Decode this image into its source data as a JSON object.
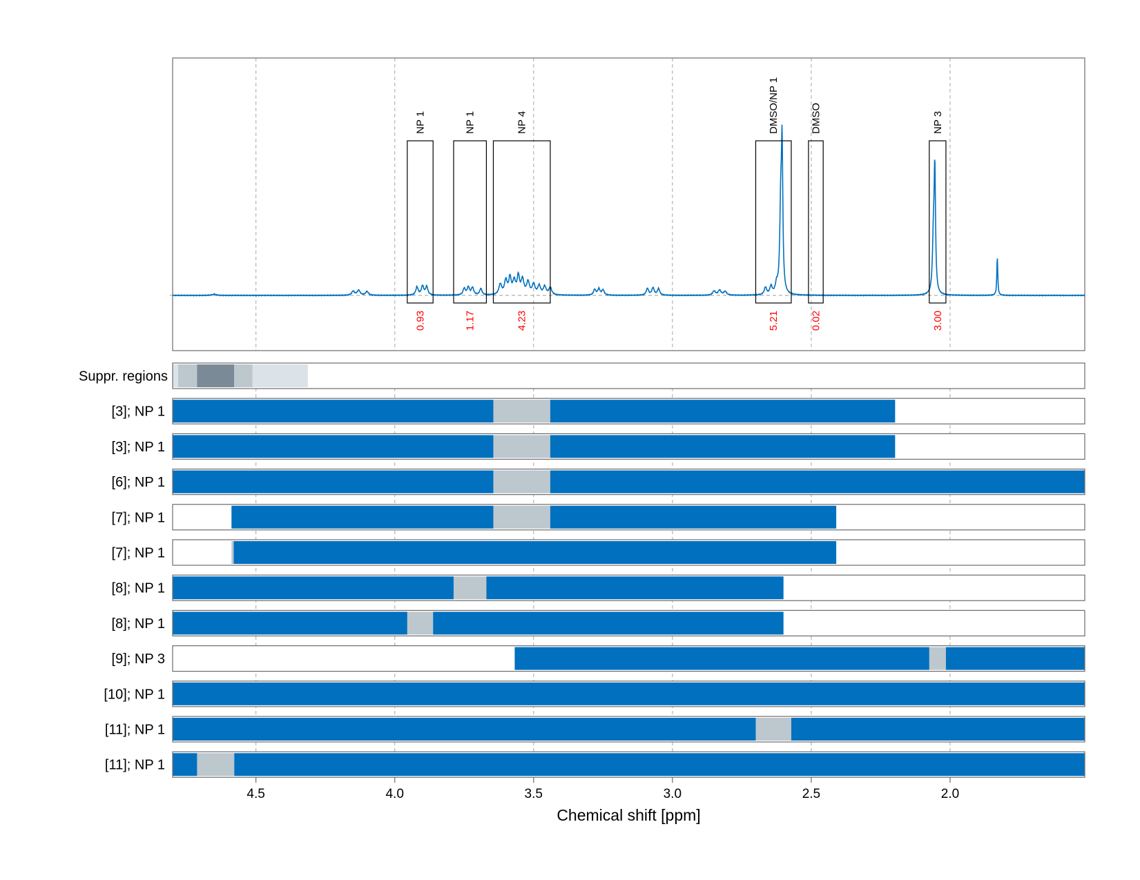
{
  "chart_data": {
    "type": "line",
    "xlabel": "Chemical shift [ppm]",
    "x_reversed": true,
    "xlim": [
      4.8,
      1.515
    ],
    "x_ticks": [
      "4.5",
      "4.0",
      "3.5",
      "3.0",
      "2.5",
      "2.0"
    ],
    "x_tick_values": [
      4.5,
      4.0,
      3.5,
      3.0,
      2.5,
      2.0
    ],
    "grid": "dashed vertical",
    "colors": {
      "spectrum": "#0070bf",
      "segment": "#0070bf",
      "excluded": "#bcc7ce",
      "box": "#000000",
      "integral": "#ff0000"
    },
    "spectrum_peaks": [
      {
        "ppm": 4.15,
        "height": 0.028,
        "width": 0.006
      },
      {
        "ppm": 4.13,
        "height": 0.034,
        "width": 0.006
      },
      {
        "ppm": 4.1,
        "height": 0.026,
        "width": 0.006
      },
      {
        "ppm": 3.92,
        "height": 0.055,
        "width": 0.005
      },
      {
        "ppm": 3.9,
        "height": 0.062,
        "width": 0.005
      },
      {
        "ppm": 3.885,
        "height": 0.058,
        "width": 0.005
      },
      {
        "ppm": 3.75,
        "height": 0.045,
        "width": 0.005
      },
      {
        "ppm": 3.735,
        "height": 0.052,
        "width": 0.005
      },
      {
        "ppm": 3.72,
        "height": 0.05,
        "width": 0.005
      },
      {
        "ppm": 3.69,
        "height": 0.044,
        "width": 0.005
      },
      {
        "ppm": 3.62,
        "height": 0.07,
        "width": 0.006
      },
      {
        "ppm": 3.6,
        "height": 0.095,
        "width": 0.006
      },
      {
        "ppm": 3.585,
        "height": 0.11,
        "width": 0.005
      },
      {
        "ppm": 3.57,
        "height": 0.09,
        "width": 0.006
      },
      {
        "ppm": 3.555,
        "height": 0.12,
        "width": 0.005
      },
      {
        "ppm": 3.54,
        "height": 0.1,
        "width": 0.006
      },
      {
        "ppm": 3.52,
        "height": 0.085,
        "width": 0.006
      },
      {
        "ppm": 3.5,
        "height": 0.07,
        "width": 0.006
      },
      {
        "ppm": 3.48,
        "height": 0.06,
        "width": 0.006
      },
      {
        "ppm": 3.46,
        "height": 0.055,
        "width": 0.006
      },
      {
        "ppm": 3.44,
        "height": 0.05,
        "width": 0.006
      },
      {
        "ppm": 3.28,
        "height": 0.038,
        "width": 0.005
      },
      {
        "ppm": 3.265,
        "height": 0.042,
        "width": 0.005
      },
      {
        "ppm": 3.25,
        "height": 0.036,
        "width": 0.005
      },
      {
        "ppm": 3.09,
        "height": 0.046,
        "width": 0.005
      },
      {
        "ppm": 3.07,
        "height": 0.05,
        "width": 0.005
      },
      {
        "ppm": 3.05,
        "height": 0.044,
        "width": 0.005
      },
      {
        "ppm": 2.85,
        "height": 0.028,
        "width": 0.006
      },
      {
        "ppm": 2.83,
        "height": 0.034,
        "width": 0.006
      },
      {
        "ppm": 2.81,
        "height": 0.026,
        "width": 0.006
      },
      {
        "ppm": 2.665,
        "height": 0.05,
        "width": 0.005
      },
      {
        "ppm": 2.645,
        "height": 0.055,
        "width": 0.005
      },
      {
        "ppm": 2.625,
        "height": 0.06,
        "width": 0.005
      },
      {
        "ppm": 2.61,
        "height": 0.56,
        "width": 0.004
      },
      {
        "ppm": 2.605,
        "height": 0.92,
        "width": 0.003
      },
      {
        "ppm": 2.055,
        "height": 0.8,
        "width": 0.003
      },
      {
        "ppm": 2.06,
        "height": 0.35,
        "width": 0.004
      },
      {
        "ppm": 1.83,
        "height": 0.26,
        "width": 0.002
      },
      {
        "ppm": 4.65,
        "height": 0.008,
        "width": 0.008
      }
    ],
    "integration_boxes": [
      {
        "label": "NP 1",
        "from": 3.955,
        "to": 3.862,
        "integral": "0.93"
      },
      {
        "label": "NP 1",
        "from": 3.788,
        "to": 3.67,
        "integral": "1.17"
      },
      {
        "label": "NP 4",
        "from": 3.645,
        "to": 3.44,
        "integral": "4.23"
      },
      {
        "label": "DMSO/NP 1",
        "from": 2.7,
        "to": 2.572,
        "integral": "5.21"
      },
      {
        "label": "DMSO",
        "from": 2.51,
        "to": 2.457,
        "integral": "0.02"
      },
      {
        "label": "NP 3",
        "from": 2.075,
        "to": 2.015,
        "integral": "3.00"
      }
    ],
    "suppressed_regions": {
      "label": "Suppr. regions",
      "bands": [
        {
          "from": 4.8,
          "to": 4.78,
          "shade": "#dbe2e8"
        },
        {
          "from": 4.78,
          "to": 4.712,
          "shade": "#bcc7ce"
        },
        {
          "from": 4.712,
          "to": 4.578,
          "shade": "#7a8a96"
        },
        {
          "from": 4.578,
          "to": 4.512,
          "shade": "#bcc7ce"
        },
        {
          "from": 4.512,
          "to": 4.313,
          "shade": "#dbe2e8"
        }
      ]
    },
    "rows": [
      {
        "label": "[3]; NP 1",
        "segments": [
          [
            4.8,
            3.645
          ],
          [
            3.44,
            2.198
          ]
        ],
        "excluded": [
          [
            3.645,
            3.44
          ]
        ]
      },
      {
        "label": "[3]; NP 1",
        "segments": [
          [
            4.8,
            3.645
          ],
          [
            3.44,
            2.198
          ]
        ],
        "excluded": [
          [
            3.645,
            3.44
          ]
        ]
      },
      {
        "label": "[6]; NP 1",
        "segments": [
          [
            4.8,
            3.645
          ],
          [
            3.44,
            1.515
          ]
        ],
        "excluded": [
          [
            3.645,
            3.44
          ]
        ]
      },
      {
        "label": "[7]; NP 1",
        "segments": [
          [
            4.588,
            3.645
          ],
          [
            3.44,
            2.41
          ]
        ],
        "excluded": [
          [
            3.645,
            3.44
          ]
        ]
      },
      {
        "label": "[7]; NP 1",
        "segments": [
          [
            4.58,
            2.41
          ]
        ],
        "excluded": [
          [
            4.588,
            4.58
          ]
        ]
      },
      {
        "label": "[8]; NP 1",
        "segments": [
          [
            4.8,
            3.788
          ],
          [
            3.67,
            2.6
          ]
        ],
        "excluded": [
          [
            3.788,
            3.67
          ]
        ]
      },
      {
        "label": "[8]; NP 1",
        "segments": [
          [
            4.8,
            3.955
          ],
          [
            3.862,
            2.6
          ]
        ],
        "excluded": [
          [
            3.955,
            3.862
          ]
        ]
      },
      {
        "label": "[9]; NP 3",
        "segments": [
          [
            3.568,
            2.075
          ],
          [
            2.015,
            1.515
          ]
        ],
        "excluded": [
          [
            2.075,
            2.015
          ]
        ]
      },
      {
        "label": "[10]; NP 1",
        "segments": [
          [
            4.8,
            1.515
          ]
        ],
        "excluded": []
      },
      {
        "label": "[11]; NP 1",
        "segments": [
          [
            4.8,
            2.7
          ],
          [
            2.572,
            1.515
          ]
        ],
        "excluded": [
          [
            2.7,
            2.572
          ]
        ]
      },
      {
        "label": "[11]; NP 1",
        "segments": [
          [
            4.8,
            4.712
          ],
          [
            4.578,
            1.515
          ]
        ],
        "excluded": [
          [
            4.712,
            4.578
          ]
        ]
      }
    ]
  }
}
